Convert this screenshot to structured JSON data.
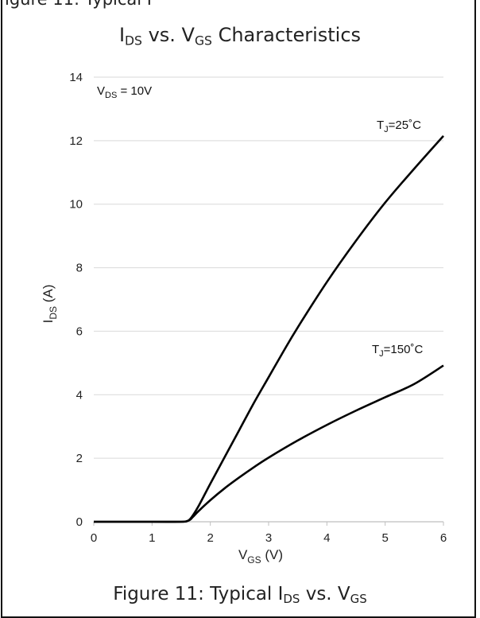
{
  "header_fragment": "igure 11: Typical I",
  "chart_data": {
    "type": "line",
    "title": {
      "main": "I",
      "sub1": "DS",
      "mid": " vs. V",
      "sub2": "GS",
      "tail": " Characteristics"
    },
    "xlabel": {
      "main": "V",
      "sub": "GS",
      "tail": " (V)"
    },
    "ylabel": {
      "main": "I",
      "sub": "DS",
      "tail": " (A)"
    },
    "xlim": [
      0,
      6
    ],
    "ylim": [
      0,
      14
    ],
    "x_ticks": [
      "0",
      "1",
      "2",
      "3",
      "4",
      "5",
      "6"
    ],
    "y_ticks": [
      "0",
      "2",
      "4",
      "6",
      "8",
      "10",
      "12",
      "14"
    ],
    "grid": "horizontal",
    "condition": {
      "main": "V",
      "sub": "DS",
      "tail": " = 10V"
    },
    "series": [
      {
        "name": {
          "main": "T",
          "sub": "J",
          "tail": "=25˚C"
        },
        "x": [
          0,
          1.0,
          1.5,
          1.6,
          1.65,
          1.7,
          1.8,
          2.0,
          2.25,
          2.5,
          2.75,
          3.0,
          3.25,
          3.5,
          4.0,
          4.5,
          5.0,
          5.5,
          6.0
        ],
        "y": [
          0,
          0,
          0,
          0.02,
          0.08,
          0.2,
          0.5,
          1.2,
          2.05,
          2.9,
          3.75,
          4.55,
          5.35,
          6.12,
          7.55,
          8.85,
          10.05,
          11.12,
          12.15
        ]
      },
      {
        "name": {
          "main": "T",
          "sub": "J",
          "tail": "=150˚C"
        },
        "x": [
          0,
          1.0,
          1.5,
          1.6,
          1.65,
          1.7,
          1.8,
          2.0,
          2.25,
          2.5,
          2.75,
          3.0,
          3.5,
          4.0,
          4.5,
          5.0,
          5.5,
          6.0
        ],
        "y": [
          0,
          0,
          0,
          0.02,
          0.06,
          0.15,
          0.34,
          0.68,
          1.06,
          1.4,
          1.72,
          2.02,
          2.56,
          3.05,
          3.5,
          3.92,
          4.34,
          4.92
        ]
      }
    ]
  },
  "caption": {
    "main": "Figure 11: Typical I",
    "sub1": "DS",
    "mid": " vs. V",
    "sub2": "GS"
  }
}
